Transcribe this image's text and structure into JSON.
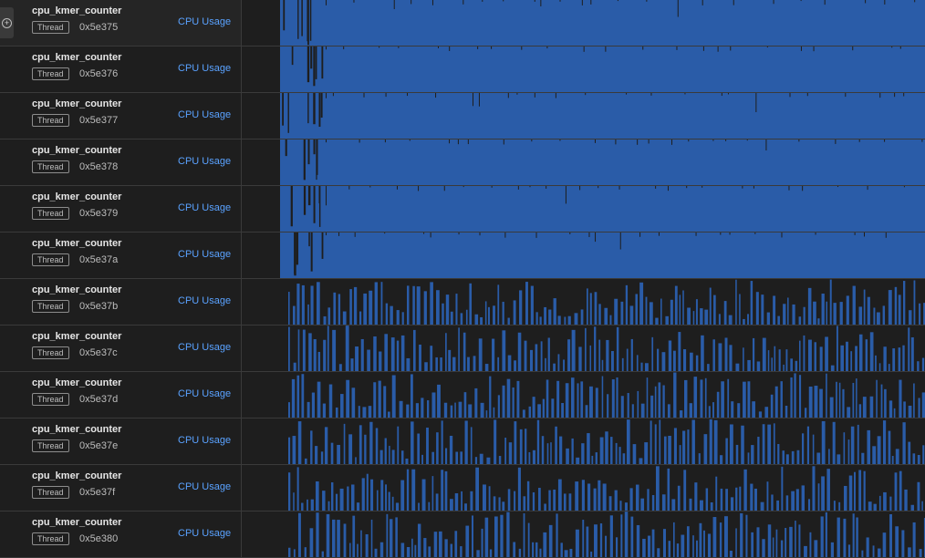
{
  "colors": {
    "usage": "#2a5ca8",
    "background": "#1e1e1e",
    "link": "#5aa2ff"
  },
  "expand_icon": "plus-circle-icon",
  "threads": [
    {
      "process": "cpu_kmer_counter",
      "kind": "Thread",
      "tid": "0x5e375",
      "metric": "CPU Usage",
      "pattern": "solid",
      "selected": true
    },
    {
      "process": "cpu_kmer_counter",
      "kind": "Thread",
      "tid": "0x5e376",
      "metric": "CPU Usage",
      "pattern": "solid",
      "selected": false
    },
    {
      "process": "cpu_kmer_counter",
      "kind": "Thread",
      "tid": "0x5e377",
      "metric": "CPU Usage",
      "pattern": "solid",
      "selected": false
    },
    {
      "process": "cpu_kmer_counter",
      "kind": "Thread",
      "tid": "0x5e378",
      "metric": "CPU Usage",
      "pattern": "solid",
      "selected": false
    },
    {
      "process": "cpu_kmer_counter",
      "kind": "Thread",
      "tid": "0x5e379",
      "metric": "CPU Usage",
      "pattern": "solid",
      "selected": false
    },
    {
      "process": "cpu_kmer_counter",
      "kind": "Thread",
      "tid": "0x5e37a",
      "metric": "CPU Usage",
      "pattern": "solid",
      "selected": false
    },
    {
      "process": "cpu_kmer_counter",
      "kind": "Thread",
      "tid": "0x5e37b",
      "metric": "CPU Usage",
      "pattern": "sparse",
      "selected": false
    },
    {
      "process": "cpu_kmer_counter",
      "kind": "Thread",
      "tid": "0x5e37c",
      "metric": "CPU Usage",
      "pattern": "sparse",
      "selected": false
    },
    {
      "process": "cpu_kmer_counter",
      "kind": "Thread",
      "tid": "0x5e37d",
      "metric": "CPU Usage",
      "pattern": "sparse",
      "selected": false
    },
    {
      "process": "cpu_kmer_counter",
      "kind": "Thread",
      "tid": "0x5e37e",
      "metric": "CPU Usage",
      "pattern": "sparse",
      "selected": false
    },
    {
      "process": "cpu_kmer_counter",
      "kind": "Thread",
      "tid": "0x5e37f",
      "metric": "CPU Usage",
      "pattern": "sparse",
      "selected": false
    },
    {
      "process": "cpu_kmer_counter",
      "kind": "Thread",
      "tid": "0x5e380",
      "metric": "CPU Usage",
      "pattern": "sparse",
      "selected": false
    }
  ]
}
